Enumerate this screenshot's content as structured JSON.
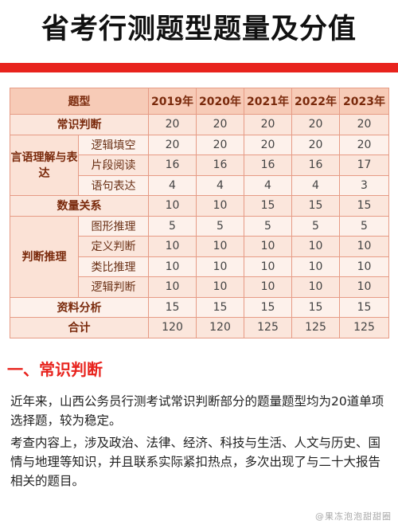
{
  "title": "省考行测题型题量及分值",
  "table": {
    "header": [
      "题型",
      "2019年",
      "2020年",
      "2021年",
      "2022年",
      "2023年"
    ],
    "groups": [
      {
        "category": "常识判断",
        "rows": [
          {
            "sub": "",
            "values": [
              "20",
              "20",
              "20",
              "20",
              "20"
            ]
          }
        ]
      },
      {
        "category": "言语理解与表达",
        "rows": [
          {
            "sub": "逻辑填空",
            "values": [
              "20",
              "20",
              "20",
              "20",
              "20"
            ]
          },
          {
            "sub": "片段阅读",
            "values": [
              "16",
              "16",
              "16",
              "16",
              "17"
            ]
          },
          {
            "sub": "语句表达",
            "values": [
              "4",
              "4",
              "4",
              "4",
              "3"
            ]
          }
        ]
      },
      {
        "category": "数量关系",
        "rows": [
          {
            "sub": "",
            "values": [
              "10",
              "10",
              "15",
              "15",
              "15"
            ]
          }
        ]
      },
      {
        "category": "判断推理",
        "rows": [
          {
            "sub": "图形推理",
            "values": [
              "5",
              "5",
              "5",
              "5",
              "5"
            ]
          },
          {
            "sub": "定义判断",
            "values": [
              "10",
              "10",
              "10",
              "10",
              "10"
            ]
          },
          {
            "sub": "类比推理",
            "values": [
              "10",
              "10",
              "10",
              "10",
              "10"
            ]
          },
          {
            "sub": "逻辑判断",
            "values": [
              "10",
              "10",
              "10",
              "10",
              "10"
            ]
          }
        ]
      },
      {
        "category": "资料分析",
        "rows": [
          {
            "sub": "",
            "values": [
              "15",
              "15",
              "15",
              "15",
              "15"
            ]
          }
        ]
      },
      {
        "category": "合计",
        "rows": [
          {
            "sub": "",
            "values": [
              "120",
              "120",
              "125",
              "125",
              "125"
            ]
          }
        ]
      }
    ]
  },
  "section": {
    "heading": "一、常识判断",
    "paragraphs": [
      "近年来，山西公务员行测考试常识判断部分的题量题型均为20道单项选择题，较为稳定。",
      "考查内容上，涉及政治、法律、经济、科技与生活、人文与历史、国情与地理等知识，并且联系实际紧扣热点，多次出现了与二十大报告相关的题目。"
    ]
  },
  "watermark": "@果冻泡泡甜甜圈"
}
